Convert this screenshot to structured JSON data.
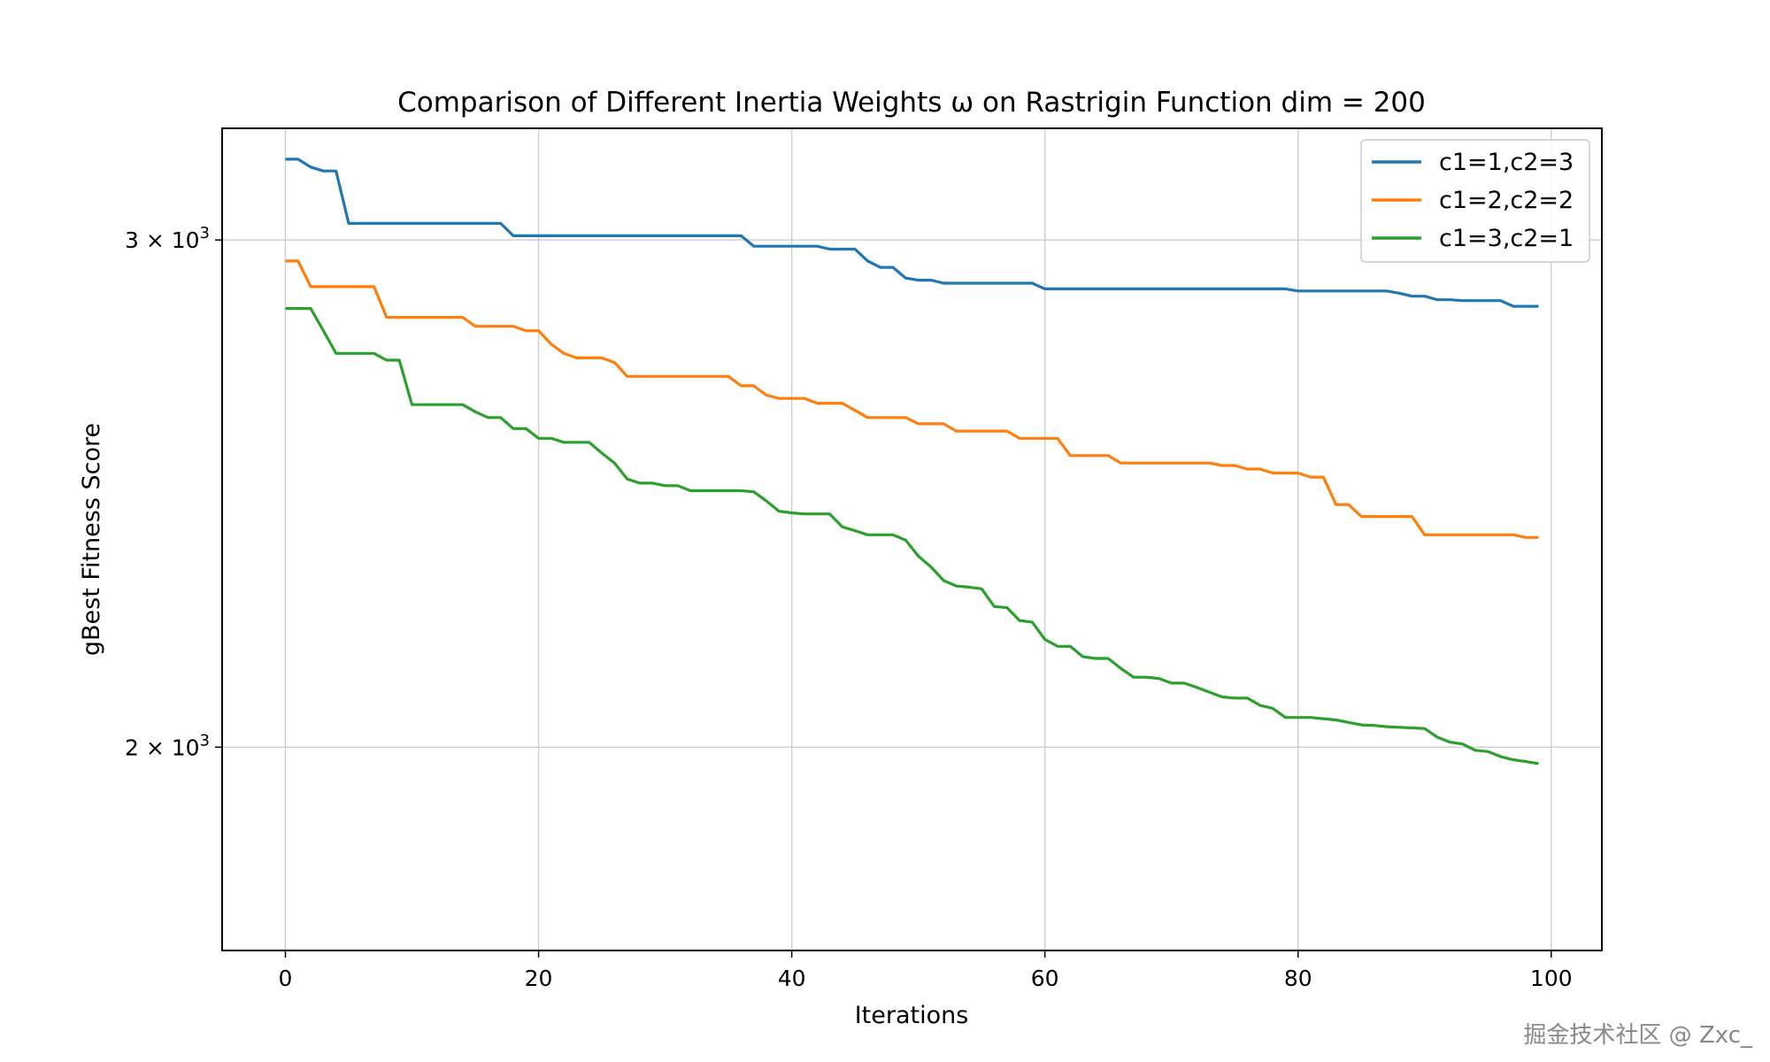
{
  "watermark": "掘金技术社区 @ Zxc_",
  "chart_data": {
    "type": "line",
    "title": "Comparison of Different Inertia Weights ω on Rastrigin Function dim = 200",
    "xlabel": "Iterations",
    "ylabel": "gBest Fitness Score",
    "yscale": "log",
    "xlim": [
      -5,
      104
    ],
    "ylim": [
      1700,
      3280
    ],
    "xticks": [
      0,
      20,
      40,
      60,
      80,
      100
    ],
    "yticks": [
      {
        "value": 2000,
        "mantissa": "2",
        "base": "10",
        "exp": "3"
      },
      {
        "value": 3000,
        "mantissa": "3",
        "base": "10",
        "exp": "3"
      }
    ],
    "grid": true,
    "legend_position": "top-right",
    "series": [
      {
        "name": "c1=1,c2=3",
        "color": "#1f77b4",
        "values": [
          3200,
          3200,
          3180,
          3170,
          3170,
          3040,
          3040,
          3040,
          3040,
          3040,
          3040,
          3040,
          3040,
          3040,
          3040,
          3040,
          3040,
          3040,
          3010,
          3010,
          3010,
          3010,
          3010,
          3010,
          3010,
          3010,
          3010,
          3010,
          3010,
          3010,
          3010,
          3010,
          3010,
          3010,
          3010,
          3010,
          3010,
          2985,
          2985,
          2985,
          2985,
          2985,
          2985,
          2978,
          2978,
          2978,
          2950,
          2935,
          2935,
          2910,
          2905,
          2905,
          2898,
          2898,
          2898,
          2898,
          2898,
          2898,
          2898,
          2898,
          2885,
          2885,
          2885,
          2885,
          2885,
          2885,
          2885,
          2885,
          2885,
          2885,
          2885,
          2885,
          2885,
          2885,
          2885,
          2885,
          2885,
          2885,
          2885,
          2885,
          2880,
          2880,
          2880,
          2880,
          2880,
          2880,
          2880,
          2880,
          2875,
          2868,
          2868,
          2860,
          2860,
          2858,
          2858,
          2858,
          2858,
          2845,
          2845,
          2845
        ]
      },
      {
        "name": "c1=2,c2=2",
        "color": "#ff7f0e",
        "values": [
          2950,
          2950,
          2890,
          2890,
          2890,
          2890,
          2890,
          2890,
          2820,
          2820,
          2820,
          2820,
          2820,
          2820,
          2820,
          2800,
          2800,
          2800,
          2800,
          2790,
          2790,
          2760,
          2740,
          2730,
          2730,
          2730,
          2720,
          2690,
          2690,
          2690,
          2690,
          2690,
          2690,
          2690,
          2690,
          2690,
          2670,
          2670,
          2650,
          2643,
          2643,
          2643,
          2633,
          2633,
          2633,
          2618,
          2603,
          2603,
          2603,
          2603,
          2590,
          2590,
          2590,
          2575,
          2575,
          2575,
          2575,
          2575,
          2560,
          2560,
          2560,
          2560,
          2525,
          2525,
          2525,
          2525,
          2510,
          2510,
          2510,
          2510,
          2510,
          2510,
          2510,
          2510,
          2505,
          2505,
          2498,
          2498,
          2490,
          2490,
          2490,
          2482,
          2482,
          2428,
          2428,
          2405,
          2405,
          2405,
          2405,
          2405,
          2370,
          2370,
          2370,
          2370,
          2370,
          2370,
          2370,
          2370,
          2365,
          2365
        ]
      },
      {
        "name": "c1=3,c2=1",
        "color": "#2ca02c",
        "values": [
          2840,
          2840,
          2840,
          2790,
          2740,
          2740,
          2740,
          2740,
          2725,
          2725,
          2630,
          2630,
          2630,
          2630,
          2630,
          2615,
          2603,
          2603,
          2580,
          2580,
          2560,
          2560,
          2552,
          2552,
          2552,
          2530,
          2510,
          2478,
          2470,
          2470,
          2465,
          2465,
          2455,
          2455,
          2455,
          2455,
          2455,
          2453,
          2435,
          2415,
          2412,
          2410,
          2410,
          2410,
          2385,
          2378,
          2370,
          2370,
          2370,
          2360,
          2330,
          2310,
          2285,
          2275,
          2273,
          2270,
          2238,
          2236,
          2213,
          2210,
          2180,
          2168,
          2168,
          2150,
          2147,
          2147,
          2130,
          2115,
          2115,
          2113,
          2105,
          2105,
          2098,
          2090,
          2082,
          2080,
          2080,
          2068,
          2063,
          2048,
          2048,
          2048,
          2046,
          2044,
          2040,
          2036,
          2035,
          2033,
          2032,
          2031,
          2030,
          2016,
          2008,
          2005,
          1995,
          1993,
          1985,
          1980,
          1977,
          1974
        ]
      }
    ]
  }
}
